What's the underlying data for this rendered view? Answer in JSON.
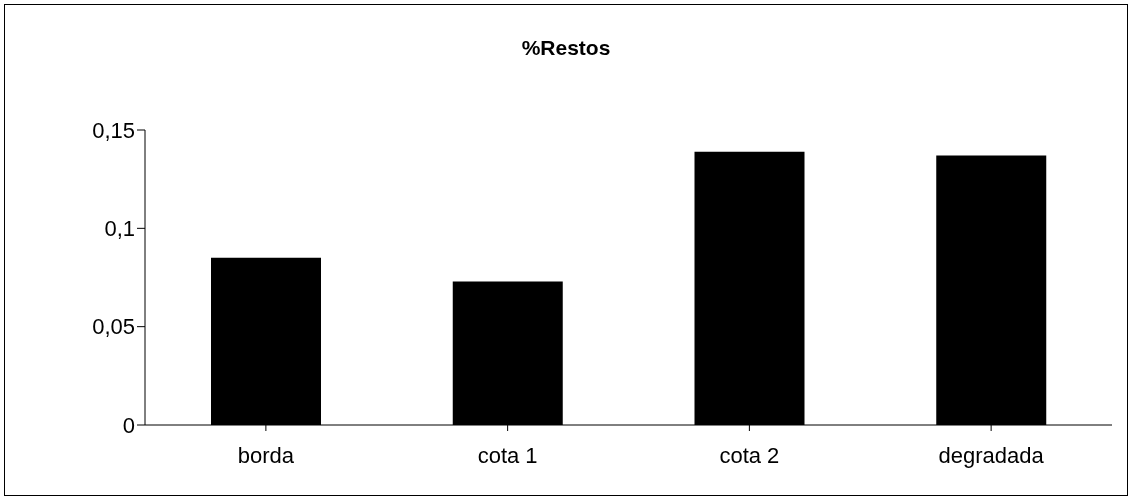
{
  "chart_data": {
    "type": "bar",
    "title": "%Restos",
    "categories": [
      "borda",
      "cota 1",
      "cota 2",
      "degradada"
    ],
    "values": [
      0.085,
      0.073,
      0.139,
      0.137
    ],
    "color": "#000000",
    "ylim": [
      0,
      0.15
    ],
    "yticks": [
      0,
      {
        "value": 0.05,
        "label": "0,05"
      },
      {
        "value": 0.1,
        "label": "0,1"
      },
      {
        "value": 0.15,
        "label": "0,15"
      }
    ],
    "grid": false,
    "legend": false
  }
}
